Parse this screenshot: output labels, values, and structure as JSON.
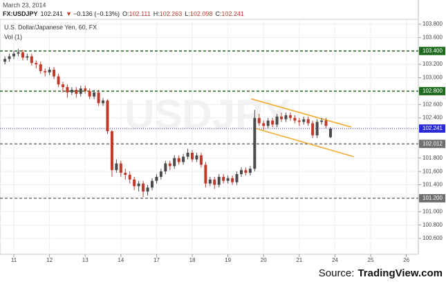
{
  "chart_data": {
    "type": "candlestick",
    "date": "March 23, 2014",
    "symbol": "FX:USDJPY",
    "last": 102.241,
    "change_arrow": "▼",
    "change": "−0.136 (−0.13%)",
    "ohlc": [
      {
        "label": "O:",
        "value": 102.111
      },
      {
        "label": "H:",
        "value": 102.263
      },
      {
        "label": "L:",
        "value": 102.098
      },
      {
        "label": "C:",
        "value": 102.241
      }
    ],
    "title": "U.S. Dollar/Japanese Yen, 60, FX",
    "subtitle": "Vol (1)",
    "watermark": "USDJPY",
    "source_label": "Source:",
    "source": "TradingView.com",
    "up_color": "#4a4a4a",
    "down_color": "#c0392b",
    "grid": true,
    "xlim": [
      -0.388,
      11.337
    ],
    "ylim": [
      100.363,
      103.872
    ],
    "xticks": [
      {
        "value": 0,
        "label": "11"
      },
      {
        "value": 1,
        "label": "12"
      },
      {
        "value": 2,
        "label": "13"
      },
      {
        "value": 3,
        "label": "14"
      },
      {
        "value": 4,
        "label": "17"
      },
      {
        "value": 5,
        "label": "18"
      },
      {
        "value": 6,
        "label": "19"
      },
      {
        "value": 7,
        "label": "20"
      },
      {
        "value": 8,
        "label": "21"
      },
      {
        "value": 9,
        "label": "24"
      },
      {
        "value": 10,
        "label": "25"
      },
      {
        "value": 11,
        "label": "26"
      }
    ],
    "yticks": [
      {
        "value": 100.6,
        "label": "100.600"
      },
      {
        "value": 100.8,
        "label": "100.800"
      },
      {
        "value": 101.0,
        "label": "101.000"
      },
      {
        "value": 101.4,
        "label": "101.400"
      },
      {
        "value": 101.6,
        "label": "101.600"
      },
      {
        "value": 101.8,
        "label": "101.800"
      },
      {
        "value": 102.4,
        "label": "102.400"
      },
      {
        "value": 102.6,
        "label": "102.600"
      },
      {
        "value": 103.0,
        "label": "103.000"
      },
      {
        "value": 103.2,
        "label": "103.200"
      },
      {
        "value": 103.6,
        "label": "103.600"
      },
      {
        "value": 103.8,
        "label": "103.800"
      }
    ],
    "levels": [
      {
        "value": 103.4,
        "label": "103.400",
        "color": "#1f6b1f",
        "dash": "4,3"
      },
      {
        "value": 102.8,
        "label": "102.800",
        "color": "#1f6b1f",
        "dash": "4,3"
      },
      {
        "value": 102.241,
        "label": "102.241",
        "color": "#2b2bd6",
        "dash": "1,2"
      },
      {
        "value": 102.012,
        "label": "102.012",
        "color": "#6f6f6f",
        "dash": "4,3"
      },
      {
        "value": 101.2,
        "label": "101.200",
        "color": "#6f6f6f",
        "dash": "4,3"
      }
    ],
    "trendlines": [
      {
        "x": [
          6.65,
          9.46
        ],
        "y": [
          102.685,
          102.262
        ],
        "color": "#f5a623"
      },
      {
        "x": [
          6.78,
          9.53
        ],
        "y": [
          102.242,
          101.82
        ],
        "color": "#f5a623"
      }
    ],
    "x": [
      -0.25,
      -0.125,
      0,
      0.125,
      0.25,
      0.375,
      0.5,
      0.625,
      0.75,
      0.875,
      1,
      1.125,
      1.25,
      1.375,
      1.5,
      1.625,
      1.75,
      1.875,
      2,
      2.125,
      2.25,
      2.375,
      2.5,
      2.625,
      2.75,
      2.875,
      3,
      3.125,
      3.25,
      3.375,
      3.5,
      3.625,
      3.75,
      3.875,
      4,
      4.125,
      4.25,
      4.375,
      4.5,
      4.625,
      4.75,
      4.875,
      5,
      5.125,
      5.25,
      5.375,
      5.5,
      5.625,
      5.75,
      5.875,
      6,
      6.125,
      6.25,
      6.375,
      6.5,
      6.625,
      6.75,
      6.875,
      7,
      7.125,
      7.25,
      7.375,
      7.5,
      7.625,
      7.75,
      7.875,
      8,
      8.125,
      8.25,
      8.375,
      8.5,
      8.625,
      8.75,
      8.875
    ],
    "open": [
      103.24,
      103.28,
      103.32,
      103.36,
      103.38,
      103.3,
      103.32,
      103.22,
      103.2,
      103.1,
      103.08,
      103.12,
      103.02,
      102.9,
      102.86,
      102.78,
      102.82,
      102.76,
      102.84,
      102.8,
      102.72,
      102.78,
      102.62,
      102.66,
      102.2,
      101.62,
      101.72,
      101.58,
      101.55,
      101.48,
      101.38,
      101.42,
      101.3,
      101.36,
      101.46,
      101.52,
      101.6,
      101.72,
      101.68,
      101.8,
      101.74,
      101.82,
      101.88,
      101.78,
      101.84,
      101.7,
      101.42,
      101.48,
      101.4,
      101.52,
      101.46,
      101.5,
      101.44,
      101.56,
      101.62,
      101.58,
      101.64,
      102.4,
      102.32,
      102.28,
      102.36,
      102.3,
      102.42,
      102.38,
      102.44,
      102.4,
      102.36,
      102.34,
      102.38,
      102.32,
      102.14,
      102.34,
      102.36,
      102.111
    ],
    "high": [
      103.32,
      103.36,
      103.4,
      103.43,
      103.42,
      103.36,
      103.36,
      103.26,
      103.24,
      103.14,
      103.16,
      103.16,
      103.06,
      102.94,
      102.9,
      102.86,
      102.86,
      102.88,
      102.88,
      102.84,
      102.82,
      102.82,
      102.7,
      102.68,
      102.22,
      101.78,
      101.76,
      101.64,
      101.6,
      101.52,
      101.46,
      101.46,
      101.4,
      101.5,
      101.56,
      101.64,
      101.76,
      101.76,
      101.84,
      101.84,
      101.86,
      101.94,
      101.92,
      101.88,
      101.88,
      101.74,
      101.52,
      101.52,
      101.56,
      101.56,
      101.54,
      101.54,
      101.6,
      101.66,
      101.66,
      101.68,
      102.52,
      102.46,
      102.36,
      102.4,
      102.4,
      102.46,
      102.48,
      102.48,
      102.48,
      102.44,
      102.4,
      102.42,
      102.42,
      102.36,
      102.38,
      102.4,
      102.4,
      102.263
    ],
    "low": [
      103.2,
      103.24,
      103.28,
      103.32,
      103.26,
      103.26,
      103.18,
      103.14,
      103.06,
      103.02,
      103.04,
      102.98,
      102.86,
      102.78,
      102.7,
      102.74,
      102.7,
      102.72,
      102.76,
      102.68,
      102.68,
      102.58,
      102.58,
      102.16,
      101.52,
      101.58,
      101.52,
      101.48,
      101.42,
      101.32,
      101.3,
      101.22,
      101.24,
      101.32,
      101.42,
      101.48,
      101.56,
      101.62,
      101.64,
      101.7,
      101.7,
      101.78,
      101.74,
      101.74,
      101.66,
      101.36,
      101.38,
      101.34,
      101.36,
      101.42,
      101.42,
      101.4,
      101.4,
      101.52,
      101.54,
      101.54,
      101.6,
      102.28,
      102.22,
      102.24,
      102.26,
      102.26,
      102.34,
      102.34,
      102.36,
      102.32,
      102.28,
      102.3,
      102.28,
      102.1,
      102.1,
      102.3,
      102.24,
      102.098
    ],
    "close": [
      103.28,
      103.32,
      103.36,
      103.38,
      103.3,
      103.32,
      103.22,
      103.2,
      103.1,
      103.08,
      103.12,
      103.02,
      102.9,
      102.86,
      102.78,
      102.82,
      102.76,
      102.84,
      102.8,
      102.72,
      102.78,
      102.62,
      102.66,
      102.2,
      101.62,
      101.72,
      101.58,
      101.55,
      101.48,
      101.38,
      101.42,
      101.3,
      101.36,
      101.46,
      101.52,
      101.6,
      101.72,
      101.68,
      101.8,
      101.74,
      101.82,
      101.88,
      101.78,
      101.84,
      101.7,
      101.42,
      101.48,
      101.4,
      101.52,
      101.46,
      101.5,
      101.44,
      101.56,
      101.62,
      101.58,
      101.64,
      102.4,
      102.32,
      102.28,
      102.36,
      102.3,
      102.42,
      102.38,
      102.44,
      102.4,
      102.36,
      102.34,
      102.38,
      102.32,
      102.14,
      102.34,
      102.36,
      102.28,
      102.241
    ]
  }
}
